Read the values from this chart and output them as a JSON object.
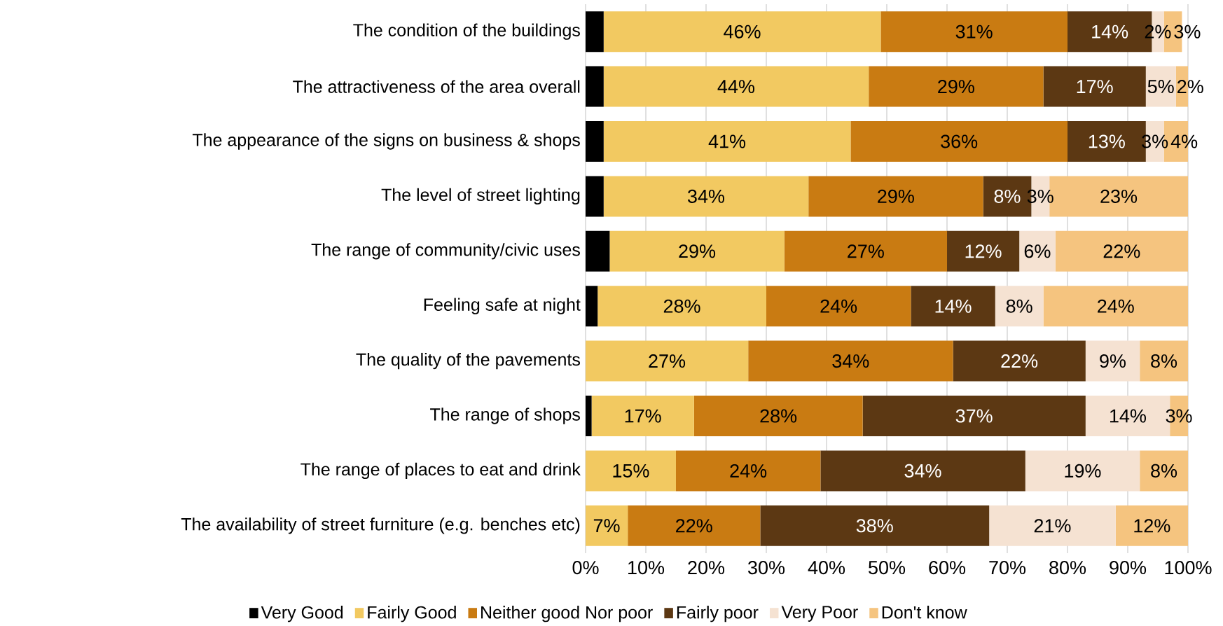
{
  "chart_data": {
    "type": "bar",
    "orientation": "horizontal",
    "stacked": true,
    "grid": "x",
    "legend": "bottom",
    "categories": [
      "The condition of the buildings",
      "The attractiveness of the area overall",
      "The appearance of the signs on business & shops",
      "The level of street lighting",
      "The range of community/civic uses",
      "Feeling safe at night",
      "The quality of the pavements",
      "The range of shops",
      "The range of places to eat and drink",
      "The availability of street furniture (e.g. benches etc)"
    ],
    "series": [
      {
        "name": "Very Good",
        "color": "#000000",
        "values": [
          3,
          3,
          3,
          3,
          4,
          2,
          0,
          1,
          0,
          0
        ],
        "value_labels": [
          null,
          null,
          null,
          null,
          null,
          null,
          null,
          null,
          null,
          null
        ]
      },
      {
        "name": "Fairly Good",
        "color": "#f2c961",
        "values": [
          46,
          44,
          41,
          34,
          29,
          28,
          27,
          17,
          15,
          7
        ],
        "value_labels": [
          "46%",
          "44%",
          "41%",
          "34%",
          "29%",
          "28%",
          "27%",
          "17%",
          "15%",
          "7%"
        ]
      },
      {
        "name": "Neither good Nor poor",
        "color": "#c97b12",
        "values": [
          31,
          29,
          36,
          29,
          27,
          24,
          34,
          28,
          24,
          22
        ],
        "value_labels": [
          "31%",
          "29%",
          "36%",
          "29%",
          "27%",
          "24%",
          "34%",
          "28%",
          "24%",
          "22%"
        ]
      },
      {
        "name": "Fairly  poor",
        "color": "#5c3813",
        "values": [
          14,
          17,
          13,
          8,
          12,
          14,
          22,
          37,
          34,
          38
        ],
        "value_labels": [
          "14%",
          "17%",
          "13%",
          "8%",
          "12%",
          "14%",
          "22%",
          "37%",
          "34%",
          "38%"
        ]
      },
      {
        "name": "Very Poor",
        "color": "#f5e2d2",
        "values": [
          2,
          5,
          3,
          3,
          6,
          8,
          9,
          14,
          19,
          21
        ],
        "value_labels": [
          "2%",
          "5%",
          "3%",
          "3%",
          "6%",
          "8%",
          "9%",
          "14%",
          "19%",
          "21%"
        ]
      },
      {
        "name": "Don't know",
        "color": "#f5c47f",
        "values": [
          3,
          2,
          4,
          23,
          22,
          24,
          8,
          3,
          8,
          12
        ],
        "value_labels": [
          "3%",
          "2%",
          "4%",
          "23%",
          "22%",
          "24%",
          "8%",
          "3%",
          "8%",
          "12%"
        ]
      }
    ],
    "xlim": [
      0,
      100
    ],
    "xticks": [
      {
        "value": 0,
        "label": "0%"
      },
      {
        "value": 10,
        "label": "10%"
      },
      {
        "value": 20,
        "label": "20%"
      },
      {
        "value": 30,
        "label": "30%"
      },
      {
        "value": 40,
        "label": "40%"
      },
      {
        "value": 50,
        "label": "50%"
      },
      {
        "value": 60,
        "label": "60%"
      },
      {
        "value": 70,
        "label": "70%"
      },
      {
        "value": 80,
        "label": "80%"
      },
      {
        "value": 90,
        "label": "90%"
      },
      {
        "value": 100,
        "label": "100%"
      }
    ]
  }
}
